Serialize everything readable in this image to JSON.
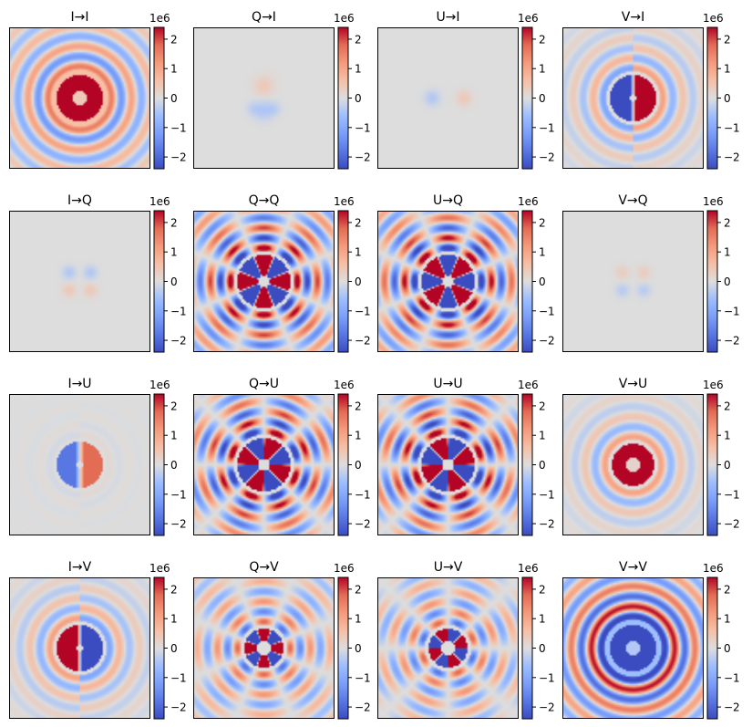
{
  "chart_data": {
    "type": "heatmap",
    "description_grid": "4x4 Mueller-matrix PSF maps",
    "colormap": "coolwarm",
    "colorbar": {
      "scale_label": "1e6",
      "ticks": [
        2,
        1,
        0,
        -1,
        -2
      ],
      "tick_labels": [
        "2",
        "1",
        "0",
        "−1",
        "−2"
      ],
      "range": [
        -2.4,
        2.4
      ]
    },
    "panels": [
      {
        "title": "I→I",
        "pattern": "ring",
        "sign": 1,
        "amp": 1.0,
        "ring_amp": 0.12
      },
      {
        "title": "Q→I",
        "pattern": "lobes4",
        "sign": 1,
        "amp": 0.12,
        "orientation": "vertical"
      },
      {
        "title": "U→I",
        "pattern": "lobes2",
        "sign": 1,
        "amp": 0.12
      },
      {
        "title": "V→I",
        "pattern": "dipole",
        "sign": 1,
        "amp": 1.0,
        "ring_amp": 0.1
      },
      {
        "title": "I→Q",
        "pattern": "lobes4",
        "sign": 1,
        "amp": 0.12,
        "orientation": "horizontal"
      },
      {
        "title": "Q→Q",
        "pattern": "petals",
        "sign": 1,
        "amp": 1.0,
        "phase": 0,
        "ring_amp": 0.25
      },
      {
        "title": "U→Q",
        "pattern": "petals",
        "sign": -1,
        "amp": 1.0,
        "phase": 0,
        "ring_amp": 0.25
      },
      {
        "title": "V→Q",
        "pattern": "lobes4",
        "sign": -1,
        "amp": 0.1,
        "orientation": "horizontal"
      },
      {
        "title": "I→U",
        "pattern": "dipole",
        "sign": 1,
        "amp": 0.45,
        "ring_amp": 0.02
      },
      {
        "title": "Q→U",
        "pattern": "petals",
        "sign": 1,
        "amp": 1.0,
        "phase": 22.5,
        "ring_amp": 0.25
      },
      {
        "title": "U→U",
        "pattern": "petals",
        "sign": -1,
        "amp": 1.0,
        "phase": 22.5,
        "ring_amp": 0.25
      },
      {
        "title": "V→U",
        "pattern": "donut",
        "sign": 1,
        "amp": 1.0,
        "ring_amp": 0.1
      },
      {
        "title": "I→V",
        "pattern": "dipole",
        "sign": -1,
        "amp": 1.0,
        "ring_amp": 0.1
      },
      {
        "title": "Q→V",
        "pattern": "petals_small",
        "sign": 1,
        "amp": 1.0,
        "phase": 0,
        "ring_amp": 0.15
      },
      {
        "title": "U→V",
        "pattern": "petals_small",
        "sign": -1,
        "amp": 1.0,
        "phase": 22.5,
        "ring_amp": 0.15
      },
      {
        "title": "V→V",
        "pattern": "ring",
        "sign": -1,
        "amp": 1.0,
        "ring_amp": 0.22
      }
    ]
  }
}
